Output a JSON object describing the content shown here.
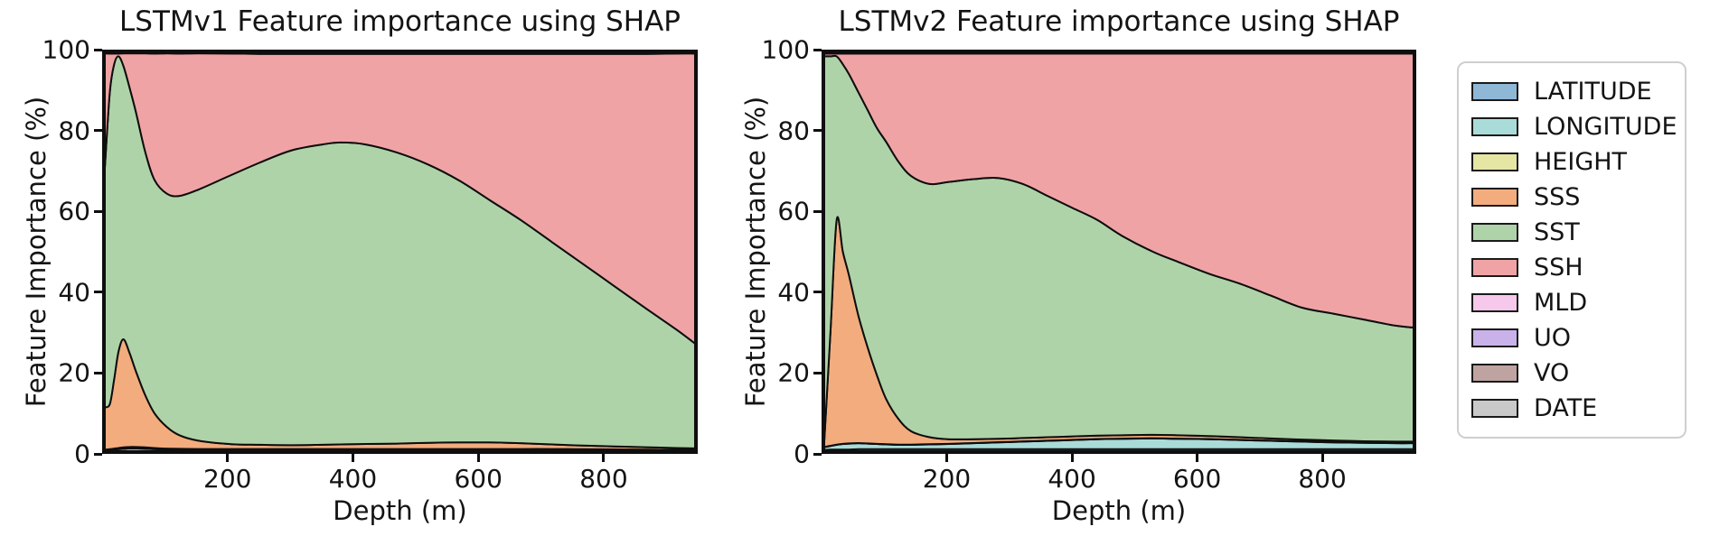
{
  "figure": {
    "background": "#ffffff"
  },
  "chart_data": [
    {
      "type": "area",
      "stacked": true,
      "title": "LSTMv1 Feature importance using SHAP",
      "xlabel": "Depth (m)",
      "ylabel": "Feature Importance (%)",
      "xlim": [
        0,
        950
      ],
      "ylim": [
        0,
        100
      ],
      "grid": false,
      "x_ticks": [
        "200",
        "400",
        "600",
        "800"
      ],
      "y_ticks": [
        "0",
        "20",
        "40",
        "60",
        "80",
        "100"
      ],
      "x": [
        0,
        8,
        15,
        22,
        30,
        40,
        50,
        65,
        80,
        100,
        120,
        150,
        200,
        250,
        300,
        350,
        380,
        420,
        470,
        520,
        570,
        620,
        670,
        720,
        770,
        820,
        870,
        920,
        950
      ],
      "series": [
        {
          "name": "LATITUDE",
          "color": "#8FB7D6",
          "values": [
            0.2,
            0.3,
            0.4,
            0.5,
            0.6,
            0.7,
            0.7,
            0.6,
            0.5,
            0.4,
            0.35,
            0.3,
            0.3,
            0.3,
            0.3,
            0.3,
            0.3,
            0.3,
            0.3,
            0.3,
            0.3,
            0.3,
            0.3,
            0.3,
            0.25,
            0.25,
            0.2,
            0.2,
            0.2
          ]
        },
        {
          "name": "LONGITUDE",
          "color": "#A9DCD9",
          "values": [
            0.1,
            0.15,
            0.2,
            0.25,
            0.3,
            0.3,
            0.3,
            0.3,
            0.25,
            0.2,
            0.2,
            0.2,
            0.2,
            0.2,
            0.2,
            0.2,
            0.2,
            0.2,
            0.2,
            0.2,
            0.2,
            0.2,
            0.2,
            0.2,
            0.2,
            0.15,
            0.15,
            0.1,
            0.1
          ]
        },
        {
          "name": "HEIGHT",
          "color": "#E5E5A4",
          "const": 0.05
        },
        {
          "name": "SSS",
          "color": "#F3AC7E",
          "values": [
            10.7,
            11.3,
            17.4,
            24.2,
            27.1,
            23.5,
            19,
            13.1,
            8.7,
            5.4,
            3.4,
            2.1,
            1.25,
            1.05,
            0.95,
            1.05,
            1.15,
            1.25,
            1.35,
            1.55,
            1.65,
            1.65,
            1.45,
            1.15,
            0.9,
            0.75,
            0.6,
            0.45,
            0.35
          ]
        },
        {
          "name": "SST",
          "color": "#AFD3A8",
          "values": [
            60,
            78.2,
            78.95,
            74,
            68.5,
            66.5,
            65,
            61,
            58.5,
            58.5,
            60,
            62.9,
            67.2,
            70.8,
            73.9,
            75.3,
            75.7,
            75.1,
            73,
            69.8,
            65.7,
            60.7,
            55.9,
            50.7,
            45.5,
            40.2,
            34.9,
            29.7,
            26.3
          ]
        },
        {
          "name": "SSH",
          "color": "#F0A3A5",
          "values": [
            28.7,
            9.7,
            2.7,
            0.7,
            3.2,
            8.7,
            14.7,
            24.7,
            31.7,
            35.2,
            35.7,
            34.2,
            30.7,
            27.2,
            24.2,
            22.7,
            22.2,
            22.7,
            24.7,
            27.7,
            31.7,
            36.7,
            41.7,
            47.2,
            52.7,
            58.2,
            63.7,
            69.2,
            72.7
          ]
        },
        {
          "name": "MLD",
          "color": "#F6C8EB",
          "const": 0.075
        },
        {
          "name": "UO",
          "color": "#C9B2EA",
          "const": 0.075
        },
        {
          "name": "VO",
          "color": "#BFA3A0",
          "const": 0.075
        },
        {
          "name": "DATE",
          "color": "#C9C9C9",
          "const": 0.075
        }
      ]
    },
    {
      "type": "area",
      "stacked": true,
      "title": "LSTMv2 Feature importance using SHAP",
      "xlabel": "Depth (m)",
      "ylabel": "Feature Importance (%)",
      "xlim": [
        0,
        950
      ],
      "ylim": [
        0,
        100
      ],
      "grid": false,
      "x_ticks": [
        "200",
        "400",
        "600",
        "800"
      ],
      "y_ticks": [
        "0",
        "20",
        "40",
        "60",
        "80",
        "100"
      ],
      "x": [
        0,
        10,
        20,
        30,
        40,
        55,
        70,
        85,
        100,
        120,
        140,
        170,
        200,
        240,
        280,
        320,
        360,
        400,
        440,
        480,
        530,
        570,
        620,
        670,
        720,
        770,
        820,
        870,
        920,
        950
      ],
      "series": [
        {
          "name": "LATITUDE",
          "color": "#8FB7D6",
          "values": [
            0.3,
            0.4,
            0.4,
            0.4,
            0.4,
            0.5,
            0.5,
            0.5,
            0.5,
            0.5,
            0.5,
            0.5,
            0.5,
            0.5,
            0.5,
            0.5,
            0.5,
            0.5,
            0.5,
            0.5,
            0.5,
            0.5,
            0.5,
            0.5,
            0.5,
            0.5,
            0.5,
            0.5,
            0.5,
            0.5
          ]
        },
        {
          "name": "LONGITUDE",
          "color": "#A9DCD9",
          "values": [
            0.7,
            0.9,
            1.2,
            1.4,
            1.5,
            1.5,
            1.4,
            1.3,
            1.2,
            1.1,
            1.1,
            1.2,
            1.3,
            1.5,
            1.7,
            1.9,
            2.1,
            2.3,
            2.5,
            2.6,
            2.7,
            2.6,
            2.5,
            2.3,
            2.1,
            1.9,
            1.7,
            1.6,
            1.5,
            1.5
          ]
        },
        {
          "name": "HEIGHT",
          "color": "#E5E5A4",
          "const": 0.05
        },
        {
          "name": "SSS",
          "color": "#F3AC7E",
          "values": [
            1.45,
            28.65,
            56.35,
            48.15,
            42.05,
            31.95,
            24.05,
            17.15,
            11.25,
            6.35,
            3.35,
            1.75,
            1.15,
            0.95,
            0.85,
            0.85,
            0.85,
            0.85,
            0.85,
            0.85,
            0.85,
            0.85,
            0.75,
            0.65,
            0.55,
            0.45,
            0.45,
            0.35,
            0.35,
            0.35
          ]
        },
        {
          "name": "SST",
          "color": "#AFD3A8",
          "values": [
            96.5,
            69,
            41,
            47,
            50.5,
            56,
            59.5,
            62,
            64.5,
            64.5,
            64,
            63.5,
            64.5,
            65.2,
            65.4,
            63.7,
            60.5,
            57.3,
            54.1,
            50,
            45.9,
            43.5,
            40.7,
            38.5,
            35.8,
            33.1,
            31.8,
            30.5,
            29.1,
            28.6
          ]
        },
        {
          "name": "SSH",
          "color": "#F0A3A5",
          "values": [
            0.7,
            0.7,
            0.7,
            2.7,
            5.2,
            9.7,
            14.2,
            18.7,
            22.2,
            27.2,
            30.7,
            32.7,
            32.2,
            31.5,
            31.2,
            32.7,
            35.7,
            38.7,
            41.7,
            45.7,
            49.7,
            52.2,
            55.2,
            57.7,
            60.7,
            63.7,
            65.2,
            66.7,
            68.2,
            68.7
          ]
        },
        {
          "name": "MLD",
          "color": "#F6C8EB",
          "const": 0.075
        },
        {
          "name": "UO",
          "color": "#C9B2EA",
          "const": 0.075
        },
        {
          "name": "VO",
          "color": "#BFA3A0",
          "const": 0.075
        },
        {
          "name": "DATE",
          "color": "#C9C9C9",
          "const": 0.075
        }
      ]
    }
  ],
  "legend": {
    "items": [
      {
        "label": "LATITUDE",
        "color": "#8FB7D6"
      },
      {
        "label": "LONGITUDE",
        "color": "#A9DCD9"
      },
      {
        "label": "HEIGHT",
        "color": "#E5E5A4"
      },
      {
        "label": "SSS",
        "color": "#F3AC7E"
      },
      {
        "label": "SST",
        "color": "#AFD3A8"
      },
      {
        "label": "SSH",
        "color": "#F0A3A5"
      },
      {
        "label": "MLD",
        "color": "#F6C8EB"
      },
      {
        "label": "UO",
        "color": "#C9B2EA"
      },
      {
        "label": "VO",
        "color": "#BFA3A0"
      },
      {
        "label": "DATE",
        "color": "#C9C9C9"
      }
    ]
  }
}
